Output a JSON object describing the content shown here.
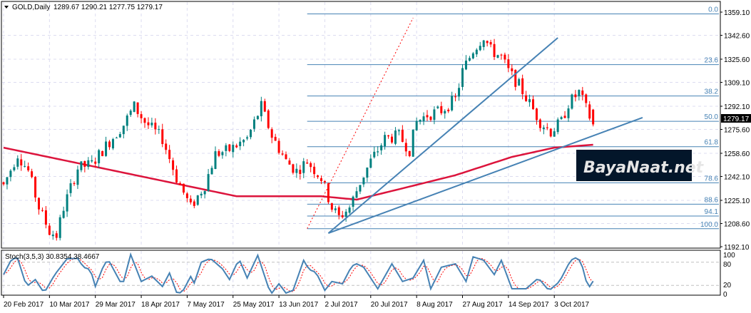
{
  "header": {
    "symbol": "GOLD,Daily",
    "ohlc": "1289.67 1290.21 1277.75 1279.17"
  },
  "indicator_label": "Stoch(3,5,3) 30.8354 38.4667",
  "current_price": "1279.17",
  "watermark": "BayaNaat.net",
  "colors": {
    "bull": "#00807f",
    "bear": "#ff0000",
    "ma": "#dc143c",
    "fib": "#4682b4",
    "trend": "#4682b4",
    "stoch_main": "#4682b4",
    "stoch_signal": "#ff0000"
  },
  "chart_data": {
    "type": "candlestick",
    "title": "GOLD,Daily",
    "bar_count": 168,
    "ylim": [
      1192.1,
      1359.1
    ],
    "price_ticks": [
      "1359.10",
      "1342.60",
      "1325.60",
      "1309.10",
      "1292.10",
      "1275.60",
      "1258.60",
      "1242.10",
      "1225.10",
      "1208.60",
      "1192.10"
    ],
    "date_ticks": [
      "20 Feb 2017",
      "10 Mar 2017",
      "29 Mar 2017",
      "18 Apr 2017",
      "7 May 2017",
      "25 May 2017",
      "13 Jun 2017",
      "2 Jul 2017",
      "20 Jul 2017",
      "8 Aug 2017",
      "27 Aug 2017",
      "14 Sep 2017",
      "3 Oct 2017"
    ],
    "date_tick_step_bars": 13,
    "last_bar": {
      "open": 1289.67,
      "high": 1290.21,
      "low": 1277.75,
      "close": 1279.17
    },
    "close_path": [
      [
        0,
        1236
      ],
      [
        4,
        1258
      ],
      [
        7,
        1246
      ],
      [
        10,
        1220
      ],
      [
        13,
        1203
      ],
      [
        15,
        1200
      ],
      [
        17,
        1220
      ],
      [
        21,
        1248
      ],
      [
        25,
        1251
      ],
      [
        29,
        1264
      ],
      [
        34,
        1279
      ],
      [
        37,
        1292
      ],
      [
        40,
        1281
      ],
      [
        45,
        1269
      ],
      [
        49,
        1241
      ],
      [
        53,
        1220
      ],
      [
        57,
        1236
      ],
      [
        60,
        1258
      ],
      [
        64,
        1261
      ],
      [
        69,
        1269
      ],
      [
        73,
        1292
      ],
      [
        76,
        1271
      ],
      [
        80,
        1253
      ],
      [
        83,
        1246
      ],
      [
        86,
        1253
      ],
      [
        90,
        1241
      ],
      [
        93,
        1220
      ],
      [
        95,
        1213
      ],
      [
        98,
        1220
      ],
      [
        101,
        1238
      ],
      [
        104,
        1253
      ],
      [
        108,
        1269
      ],
      [
        112,
        1271
      ],
      [
        115,
        1261
      ],
      [
        117,
        1281
      ],
      [
        120,
        1286
      ],
      [
        124,
        1289
      ],
      [
        128,
        1297
      ],
      [
        130,
        1317
      ],
      [
        133,
        1332
      ],
      [
        136,
        1342
      ],
      [
        138,
        1332
      ],
      [
        141,
        1327
      ],
      [
        143,
        1317
      ],
      [
        146,
        1307
      ],
      [
        149,
        1294
      ],
      [
        152,
        1281
      ],
      [
        155,
        1274
      ],
      [
        158,
        1281
      ],
      [
        160,
        1294
      ],
      [
        163,
        1302
      ],
      [
        167,
        1279
      ]
    ],
    "ma200": {
      "label": "MA",
      "path": [
        [
          0,
          1262.6
        ],
        [
          66,
          1228
        ],
        [
          90,
          1228
        ],
        [
          100,
          1225.6
        ],
        [
          112,
          1233
        ],
        [
          128,
          1243
        ],
        [
          144,
          1256
        ],
        [
          156,
          1262.6
        ],
        [
          167,
          1264.7
        ]
      ]
    },
    "fibonacci": {
      "from": [
        86,
        1204.9
      ],
      "to": [
        203,
        1357.8
      ],
      "high": 1357.8,
      "low": 1204.9,
      "levels": [
        {
          "label": "0.0",
          "ratio": 0
        },
        {
          "label": "23.6",
          "ratio": 0.236
        },
        {
          "label": "38.2",
          "ratio": 0.382
        },
        {
          "label": "50.0",
          "ratio": 0.5
        },
        {
          "label": "61.8",
          "ratio": 0.618
        },
        {
          "label": "78.6",
          "ratio": 0.786
        },
        {
          "label": "88.6",
          "ratio": 0.886
        },
        {
          "label": "94.1",
          "ratio": 0.941
        },
        {
          "label": "100.0",
          "ratio": 1
        }
      ]
    },
    "trendlines": [
      {
        "name": "support-trendline",
        "from": [
          92,
          1201.7
        ],
        "to": [
          181,
          1284
        ],
        "style": "solid"
      },
      {
        "name": "channel-trendline",
        "from": [
          92,
          1201.7
        ],
        "to": [
          157,
          1340.8
        ],
        "style": "solid"
      },
      {
        "name": "angle-trendline",
        "from": [
          86,
          1205
        ],
        "to": [
          116,
          1355
        ],
        "style": "dotted"
      }
    ],
    "stochastic": {
      "name": "Stoch(3,5,3)",
      "k": 30.8354,
      "d": 38.4667,
      "levels": [
        80,
        20
      ],
      "scale_ticks": [
        "100",
        "80",
        "20",
        "0"
      ],
      "k_path": [
        [
          0,
          48
        ],
        [
          2.4,
          90
        ],
        [
          4,
          90
        ],
        [
          6.5,
          17
        ],
        [
          9,
          35
        ],
        [
          11.5,
          0
        ],
        [
          14.5,
          48
        ],
        [
          18,
          89
        ],
        [
          21,
          90
        ],
        [
          22.6,
          67
        ],
        [
          24.6,
          61
        ],
        [
          26,
          17
        ],
        [
          28.7,
          80
        ],
        [
          30,
          81
        ],
        [
          33,
          30
        ],
        [
          34,
          30
        ],
        [
          36,
          100
        ],
        [
          39,
          30
        ],
        [
          42,
          44
        ],
        [
          45,
          17
        ],
        [
          47,
          52
        ],
        [
          49,
          2
        ],
        [
          50.5,
          0
        ],
        [
          53,
          43
        ],
        [
          54,
          26
        ],
        [
          56,
          80
        ],
        [
          58.6,
          90
        ],
        [
          62,
          63
        ],
        [
          64,
          35
        ],
        [
          66.7,
          89
        ],
        [
          69,
          39
        ],
        [
          72,
          98
        ],
        [
          75,
          15
        ],
        [
          76,
          0
        ],
        [
          78,
          24
        ],
        [
          80,
          0
        ],
        [
          82,
          7
        ],
        [
          85,
          85
        ],
        [
          86.5,
          61
        ],
        [
          88.5,
          54
        ],
        [
          91,
          7
        ],
        [
          93,
          30
        ],
        [
          96,
          24
        ],
        [
          98.6,
          70
        ],
        [
          100,
          76
        ],
        [
          102,
          67
        ],
        [
          106,
          11
        ],
        [
          110,
          76
        ],
        [
          113,
          30
        ],
        [
          116,
          39
        ],
        [
          119,
          85
        ],
        [
          121,
          11
        ],
        [
          124,
          67
        ],
        [
          128,
          76
        ],
        [
          131,
          30
        ],
        [
          133,
          94
        ],
        [
          136,
          85
        ],
        [
          139,
          48
        ],
        [
          141,
          85
        ],
        [
          144,
          11
        ],
        [
          148,
          11
        ],
        [
          151.5,
          39
        ],
        [
          154.5,
          6
        ],
        [
          157.5,
          30
        ],
        [
          160.6,
          85
        ],
        [
          162.6,
          94
        ],
        [
          164,
          67
        ],
        [
          165.6,
          11
        ],
        [
          167,
          31
        ]
      ]
    }
  }
}
